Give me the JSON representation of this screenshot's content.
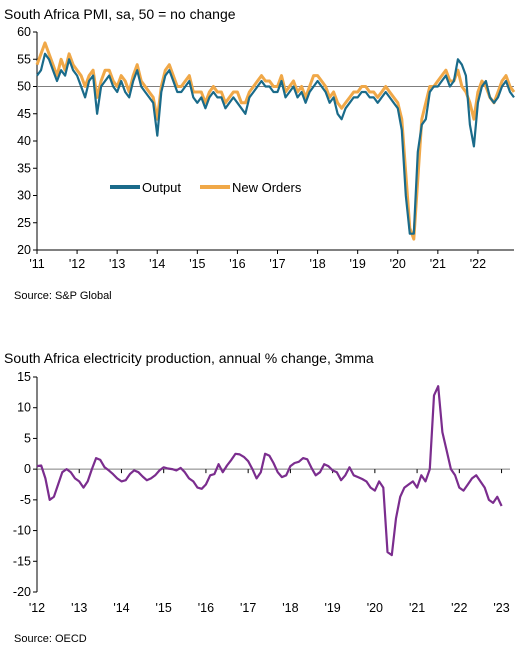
{
  "chart_data": [
    {
      "type": "line",
      "title": "South Africa PMI, sa, 50 = no change",
      "source": "Source: S&P Global",
      "x_tick_labels": [
        "'11",
        "'12",
        "'13",
        "'14",
        "'15",
        "'16",
        "'17",
        "'18",
        "'19",
        "'20",
        "'21",
        "'22"
      ],
      "x_tick_years": [
        2011,
        2012,
        2013,
        2014,
        2015,
        2016,
        2017,
        2018,
        2019,
        2020,
        2021,
        2022
      ],
      "y_ticks": [
        20,
        25,
        30,
        35,
        40,
        45,
        50,
        55,
        60
      ],
      "ylim": [
        20,
        60
      ],
      "xlim": [
        2011.0,
        2022.9
      ],
      "reference_line": 50,
      "legend_position": "center-left",
      "colors": {
        "Output": "#1a6b8a",
        "New Orders": "#f0a848",
        "reference": "#7f7f7f"
      },
      "series": [
        {
          "name": "Output",
          "x": [
            2011.0,
            2011.1,
            2011.2,
            2011.3,
            2011.4,
            2011.5,
            2011.6,
            2011.7,
            2011.8,
            2011.9,
            2012.0,
            2012.1,
            2012.2,
            2012.3,
            2012.4,
            2012.5,
            2012.6,
            2012.7,
            2012.8,
            2012.9,
            2013.0,
            2013.1,
            2013.2,
            2013.3,
            2013.4,
            2013.5,
            2013.6,
            2013.7,
            2013.8,
            2013.9,
            2014.0,
            2014.1,
            2014.2,
            2014.3,
            2014.4,
            2014.5,
            2014.6,
            2014.7,
            2014.8,
            2014.9,
            2015.0,
            2015.1,
            2015.2,
            2015.3,
            2015.4,
            2015.5,
            2015.6,
            2015.7,
            2015.8,
            2015.9,
            2016.0,
            2016.1,
            2016.2,
            2016.3,
            2016.4,
            2016.5,
            2016.6,
            2016.7,
            2016.8,
            2016.9,
            2017.0,
            2017.1,
            2017.2,
            2017.3,
            2017.4,
            2017.5,
            2017.6,
            2017.7,
            2017.8,
            2017.9,
            2018.0,
            2018.1,
            2018.2,
            2018.3,
            2018.4,
            2018.5,
            2018.6,
            2018.7,
            2018.8,
            2018.9,
            2019.0,
            2019.1,
            2019.2,
            2019.3,
            2019.4,
            2019.5,
            2019.6,
            2019.7,
            2019.8,
            2019.9,
            2020.0,
            2020.1,
            2020.2,
            2020.3,
            2020.4,
            2020.5,
            2020.6,
            2020.7,
            2020.8,
            2020.9,
            2021.0,
            2021.1,
            2021.2,
            2021.3,
            2021.4,
            2021.5,
            2021.6,
            2021.7,
            2021.8,
            2021.9,
            2022.0,
            2022.1,
            2022.2,
            2022.3,
            2022.4,
            2022.5,
            2022.6,
            2022.7,
            2022.8,
            2022.9
          ],
          "values": [
            52,
            53,
            56,
            55,
            53,
            51,
            53,
            52,
            55,
            53,
            52,
            50,
            48,
            51,
            52,
            45,
            50,
            51,
            52,
            50,
            49,
            51,
            49,
            48,
            51,
            53,
            50,
            49,
            48,
            47,
            41,
            49,
            52,
            53,
            51,
            49,
            49,
            50,
            51,
            48,
            47,
            48,
            46,
            48,
            49,
            48,
            48,
            46,
            47,
            48,
            47,
            46,
            45,
            48,
            49,
            50,
            51,
            50,
            50,
            49,
            49,
            51,
            48,
            49,
            50,
            48,
            49,
            47,
            49,
            50,
            51,
            50,
            49,
            47,
            48,
            45,
            44,
            46,
            47,
            48,
            48,
            49,
            49,
            48,
            48,
            47,
            48,
            49,
            48,
            47,
            46,
            42,
            30,
            23,
            23,
            38,
            43,
            44,
            49,
            50,
            50,
            51,
            52,
            50,
            51,
            55,
            54,
            52,
            43,
            39,
            47,
            50,
            51,
            48,
            47,
            48,
            50,
            51,
            49,
            48
          ]
        },
        {
          "name": "New Orders",
          "x": [
            2011.0,
            2011.1,
            2011.2,
            2011.3,
            2011.4,
            2011.5,
            2011.6,
            2011.7,
            2011.8,
            2011.9,
            2012.0,
            2012.1,
            2012.2,
            2012.3,
            2012.4,
            2012.5,
            2012.6,
            2012.7,
            2012.8,
            2012.9,
            2013.0,
            2013.1,
            2013.2,
            2013.3,
            2013.4,
            2013.5,
            2013.6,
            2013.7,
            2013.8,
            2013.9,
            2014.0,
            2014.1,
            2014.2,
            2014.3,
            2014.4,
            2014.5,
            2014.6,
            2014.7,
            2014.8,
            2014.9,
            2015.0,
            2015.1,
            2015.2,
            2015.3,
            2015.4,
            2015.5,
            2015.6,
            2015.7,
            2015.8,
            2015.9,
            2016.0,
            2016.1,
            2016.2,
            2016.3,
            2016.4,
            2016.5,
            2016.6,
            2016.7,
            2016.8,
            2016.9,
            2017.0,
            2017.1,
            2017.2,
            2017.3,
            2017.4,
            2017.5,
            2017.6,
            2017.7,
            2017.8,
            2017.9,
            2018.0,
            2018.1,
            2018.2,
            2018.3,
            2018.4,
            2018.5,
            2018.6,
            2018.7,
            2018.8,
            2018.9,
            2019.0,
            2019.1,
            2019.2,
            2019.3,
            2019.4,
            2019.5,
            2019.6,
            2019.7,
            2019.8,
            2019.9,
            2020.0,
            2020.1,
            2020.2,
            2020.3,
            2020.4,
            2020.5,
            2020.6,
            2020.7,
            2020.8,
            2020.9,
            2021.0,
            2021.1,
            2021.2,
            2021.3,
            2021.4,
            2021.5,
            2021.6,
            2021.7,
            2021.8,
            2021.9,
            2022.0,
            2022.1,
            2022.2,
            2022.3,
            2022.4,
            2022.5,
            2022.6,
            2022.7,
            2022.8,
            2022.9
          ],
          "values": [
            54,
            56,
            58,
            56,
            54,
            52,
            55,
            53,
            56,
            54,
            53,
            52,
            50,
            52,
            53,
            48,
            51,
            53,
            53,
            51,
            50,
            52,
            51,
            49,
            52,
            54,
            51,
            50,
            49,
            48,
            44,
            50,
            53,
            54,
            52,
            50,
            50,
            51,
            52,
            49,
            49,
            49,
            47,
            49,
            50,
            49,
            49,
            47,
            48,
            49,
            49,
            47,
            47,
            49,
            50,
            51,
            52,
            51,
            51,
            50,
            50,
            52,
            49,
            50,
            51,
            49,
            50,
            48,
            50,
            52,
            52,
            51,
            50,
            48,
            49,
            47,
            46,
            47,
            48,
            49,
            49,
            50,
            50,
            49,
            49,
            48,
            49,
            50,
            49,
            48,
            47,
            44,
            34,
            24,
            22,
            33,
            44,
            47,
            50,
            50,
            51,
            52,
            53,
            51,
            51,
            53,
            50,
            49,
            47,
            44,
            49,
            51,
            50,
            48,
            47,
            49,
            51,
            52,
            50,
            49
          ]
        }
      ]
    },
    {
      "type": "line",
      "title": "South Africa electricity production, annual % change, 3mma",
      "source": "Source: OECD",
      "x_tick_labels": [
        "'12",
        "'13",
        "'14",
        "'15",
        "'16",
        "'17",
        "'18",
        "'19",
        "'20",
        "'21",
        "'22",
        "'23"
      ],
      "x_tick_years": [
        2012,
        2013,
        2014,
        2015,
        2016,
        2017,
        2018,
        2019,
        2020,
        2021,
        2022,
        2023
      ],
      "y_ticks": [
        15,
        10,
        5,
        0,
        -5,
        -10,
        -15,
        -20
      ],
      "ylim": [
        -20,
        15
      ],
      "xlim": [
        2012.0,
        2023.2
      ],
      "reference_line": 0,
      "colors": {
        "series": "#7b2d8e",
        "reference": "#7f7f7f"
      },
      "series": [
        {
          "name": "",
          "x": [
            2012.0,
            2012.1,
            2012.2,
            2012.3,
            2012.4,
            2012.5,
            2012.6,
            2012.7,
            2012.8,
            2012.9,
            2013.0,
            2013.1,
            2013.2,
            2013.3,
            2013.4,
            2013.5,
            2013.6,
            2013.7,
            2013.8,
            2013.9,
            2014.0,
            2014.1,
            2014.2,
            2014.3,
            2014.4,
            2014.5,
            2014.6,
            2014.7,
            2014.8,
            2014.9,
            2015.0,
            2015.1,
            2015.2,
            2015.3,
            2015.4,
            2015.5,
            2015.6,
            2015.7,
            2015.8,
            2015.9,
            2016.0,
            2016.1,
            2016.2,
            2016.3,
            2016.4,
            2016.5,
            2016.6,
            2016.7,
            2016.8,
            2016.9,
            2017.0,
            2017.1,
            2017.2,
            2017.3,
            2017.4,
            2017.5,
            2017.6,
            2017.7,
            2017.8,
            2017.9,
            2018.0,
            2018.1,
            2018.2,
            2018.3,
            2018.4,
            2018.5,
            2018.6,
            2018.7,
            2018.8,
            2018.9,
            2019.0,
            2019.1,
            2019.2,
            2019.3,
            2019.4,
            2019.5,
            2019.6,
            2019.7,
            2019.8,
            2019.9,
            2020.0,
            2020.1,
            2020.2,
            2020.3,
            2020.4,
            2020.5,
            2020.6,
            2020.7,
            2020.8,
            2020.9,
            2021.0,
            2021.1,
            2021.2,
            2021.3,
            2021.4,
            2021.5,
            2021.6,
            2021.7,
            2021.8,
            2021.9,
            2022.0,
            2022.1,
            2022.2,
            2022.3,
            2022.4,
            2022.5,
            2022.6,
            2022.7,
            2022.8,
            2022.9,
            2023.0
          ],
          "values": [
            0.5,
            0.6,
            -1.5,
            -5,
            -4.5,
            -2.5,
            -0.5,
            0,
            -0.5,
            -1.5,
            -2,
            -3,
            -2,
            0,
            1.8,
            1.5,
            0.3,
            -0.2,
            -0.8,
            -1.5,
            -2,
            -1.8,
            -0.8,
            -0.2,
            -0.5,
            -1.2,
            -1.8,
            -1.5,
            -1,
            -0.2,
            0.3,
            0.1,
            0,
            -0.2,
            0.2,
            -0.5,
            -1.5,
            -2,
            -3,
            -3.2,
            -2.5,
            -1,
            -0.8,
            0.8,
            -0.5,
            0.6,
            1.5,
            2.5,
            2.4,
            2,
            1.3,
            0,
            -1.5,
            -0.5,
            2.5,
            2.2,
            1,
            -0.5,
            -1.3,
            -1,
            0.5,
            1,
            1.2,
            1.8,
            1.6,
            0.2,
            -1,
            -0.5,
            0.8,
            0.5,
            -0.2,
            -0.5,
            -1.8,
            -1,
            0.3,
            -1,
            -1.3,
            -1.6,
            -2,
            -3,
            -3.5,
            -2,
            -3,
            -13.5,
            -14,
            -8,
            -4.5,
            -3,
            -2.5,
            -2,
            -3,
            -1,
            -2,
            0,
            12,
            13.5,
            6,
            3,
            0,
            -1,
            -3,
            -3.5,
            -2.5,
            -1.5,
            -1,
            -2,
            -3,
            -5,
            -5.5,
            -4.5,
            -6
          ]
        }
      ]
    }
  ]
}
